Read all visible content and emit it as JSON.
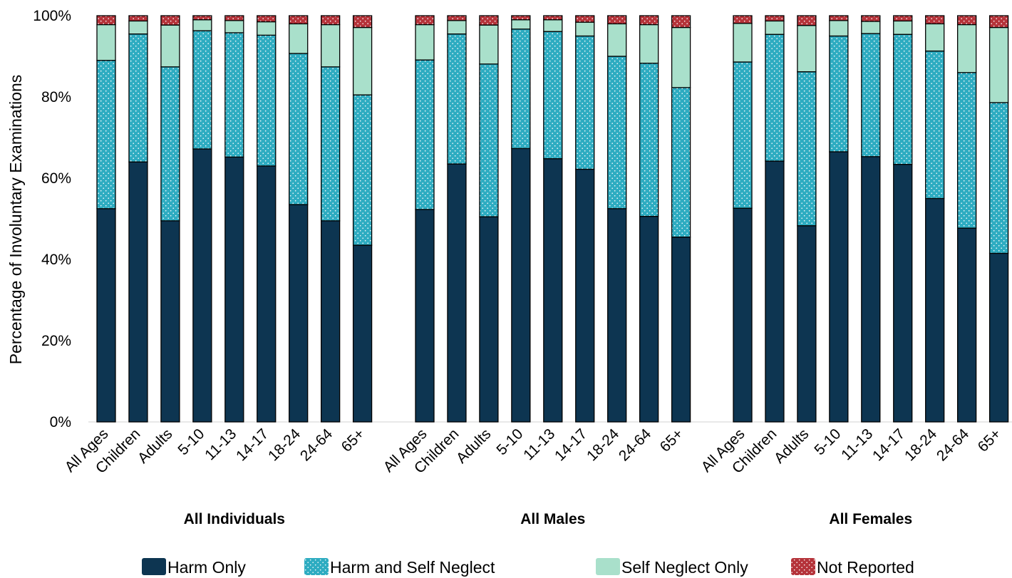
{
  "chart_data": {
    "type": "bar",
    "stacked": true,
    "title": "",
    "ylabel": "Percentage of Involuntary Examinations",
    "ylim": [
      0,
      100
    ],
    "y_ticks": [
      "0%",
      "20%",
      "40%",
      "60%",
      "80%",
      "100%"
    ],
    "grid": false,
    "legend_position": "bottom",
    "categories": [
      "All Ages",
      "Children",
      "Adults",
      "5-10",
      "11-13",
      "14-17",
      "18-24",
      "24-64",
      "65+"
    ],
    "groups": [
      {
        "label": "All Individuals",
        "series": [
          {
            "name": "Harm Only",
            "values": [
              52.5,
              64.0,
              49.5,
              67.2,
              65.2,
              63.0,
              53.5,
              49.5,
              43.5
            ]
          },
          {
            "name": "Harm and Self Neglect",
            "values": [
              36.5,
              31.5,
              37.9,
              29.1,
              30.6,
              32.2,
              37.2,
              37.9,
              37.0
            ]
          },
          {
            "name": "Self Neglect Only",
            "values": [
              8.8,
              3.2,
              10.3,
              2.7,
              3.0,
              3.3,
              7.3,
              10.4,
              16.6
            ]
          },
          {
            "name": "Not Reported",
            "values": [
              2.2,
              1.3,
              2.3,
              1.0,
              1.2,
              1.5,
              2.0,
              2.2,
              2.9
            ]
          }
        ]
      },
      {
        "label": "All Males",
        "series": [
          {
            "name": "Harm Only",
            "values": [
              52.3,
              63.5,
              50.5,
              67.3,
              64.8,
              62.2,
              52.5,
              50.6,
              45.5
            ]
          },
          {
            "name": "Harm and Self Neglect",
            "values": [
              36.8,
              32.0,
              37.6,
              29.4,
              31.3,
              32.8,
              37.5,
              37.7,
              36.8
            ]
          },
          {
            "name": "Self Neglect Only",
            "values": [
              8.7,
              3.3,
              9.6,
              2.3,
              2.9,
              3.4,
              8.0,
              9.5,
              14.8
            ]
          },
          {
            "name": "Not Reported",
            "values": [
              2.2,
              1.2,
              2.3,
              1.0,
              1.0,
              1.6,
              2.0,
              2.2,
              2.9
            ]
          }
        ]
      },
      {
        "label": "All Females",
        "series": [
          {
            "name": "Harm Only",
            "values": [
              52.6,
              64.2,
              48.3,
              66.5,
              65.3,
              63.4,
              55.0,
              47.7,
              41.5
            ]
          },
          {
            "name": "Harm and Self Neglect",
            "values": [
              36.0,
              31.2,
              37.9,
              28.5,
              30.3,
              32.0,
              36.3,
              38.3,
              37.1
            ]
          },
          {
            "name": "Self Neglect Only",
            "values": [
              9.5,
              3.3,
              11.4,
              3.8,
              3.0,
              3.3,
              6.7,
              11.8,
              18.5
            ]
          },
          {
            "name": "Not Reported",
            "values": [
              1.9,
              1.3,
              2.4,
              1.2,
              1.4,
              1.3,
              2.0,
              2.2,
              2.9
            ]
          }
        ]
      }
    ],
    "colors": {
      "Harm Only": "#0d3551",
      "Harm and Self Neglect": "#2eacc1",
      "Self Neglect Only": "#a9e0cb",
      "Not Reported": "#b5333a"
    }
  }
}
